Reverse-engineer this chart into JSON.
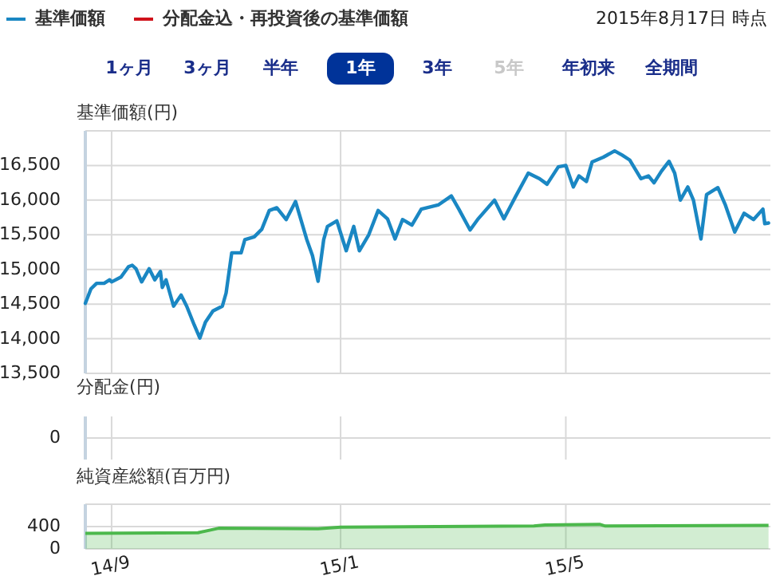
{
  "chart_data": [
    {
      "type": "line",
      "ylabel": "基準価額(円)",
      "legend": "top",
      "grid": true,
      "tick_labels": "y",
      "annotations": [
        "2015年8月17日 時点",
        "1ヶ月",
        "3ヶ月",
        "半年",
        "1年",
        "3年",
        "5年",
        "年初来",
        "全期間"
      ],
      "xlim": [
        "2014-08-18",
        "2015-08-18"
      ],
      "xticks": [
        {
          "value": "2014-09-01",
          "label": null
        },
        {
          "value": "2015-01-01",
          "label": null
        },
        {
          "value": "2015-05-01",
          "label": null
        }
      ],
      "ylim": [
        13500,
        17000
      ],
      "yticks": [
        {
          "value": 13500,
          "label": "13,500"
        },
        {
          "value": 14000,
          "label": "14,000"
        },
        {
          "value": 14500,
          "label": "14,500"
        },
        {
          "value": 15000,
          "label": "15,000"
        },
        {
          "value": 15500,
          "label": "15,500"
        },
        {
          "value": 16000,
          "label": "16,000"
        },
        {
          "value": 16500,
          "label": "16,500"
        },
        {
          "value": 17000,
          "label": null
        }
      ],
      "x": [
        "2014-08-18",
        "2014-08-21",
        "2014-08-24",
        "2014-08-28",
        "2014-08-31",
        "2014-09-01",
        "2014-09-06",
        "2014-09-10",
        "2014-09-12",
        "2014-09-14",
        "2014-09-17",
        "2014-09-21",
        "2014-09-24",
        "2014-09-27",
        "2014-09-28",
        "2014-09-30",
        "2014-10-04",
        "2014-10-08",
        "2014-10-11",
        "2014-10-15",
        "2014-10-18",
        "2014-10-21",
        "2014-10-25",
        "2014-10-30",
        "2014-11-01",
        "2014-11-04",
        "2014-11-09",
        "2014-11-11",
        "2014-11-16",
        "2014-11-20",
        "2014-11-24",
        "2014-11-28",
        "2014-12-03",
        "2014-12-08",
        "2014-12-14",
        "2014-12-17",
        "2014-12-20",
        "2014-12-23",
        "2014-12-25",
        "2014-12-30",
        "2015-01-04",
        "2015-01-08",
        "2015-01-11",
        "2015-01-16",
        "2015-01-21",
        "2015-01-26",
        "2015-01-30",
        "2015-02-03",
        "2015-02-08",
        "2015-02-13",
        "2015-02-22",
        "2015-03-01",
        "2015-03-05",
        "2015-03-11",
        "2015-03-15",
        "2015-03-24",
        "2015-03-29",
        "2015-04-04",
        "2015-04-11",
        "2015-04-17",
        "2015-04-21",
        "2015-04-27",
        "2015-05-01",
        "2015-05-05",
        "2015-05-08",
        "2015-05-12",
        "2015-05-15",
        "2015-05-21",
        "2015-05-27",
        "2015-05-31",
        "2015-06-04",
        "2015-06-10",
        "2015-06-14",
        "2015-06-17",
        "2015-06-21",
        "2015-06-25",
        "2015-06-28",
        "2015-07-01",
        "2015-07-05",
        "2015-07-08",
        "2015-07-12",
        "2015-07-15",
        "2015-07-21",
        "2015-07-25",
        "2015-07-30",
        "2015-08-04",
        "2015-08-09",
        "2015-08-14",
        "2015-08-15",
        "2015-08-17"
      ],
      "series": [
        {
          "name": "基準価額",
          "color": "#1a87c3",
          "values": [
            14510,
            14720,
            14800,
            14800,
            14850,
            14820,
            14890,
            15040,
            15060,
            15010,
            14820,
            15010,
            14850,
            14970,
            14740,
            14850,
            14470,
            14630,
            14470,
            14200,
            14010,
            14240,
            14400,
            14470,
            14660,
            15240,
            15240,
            15430,
            15470,
            15580,
            15850,
            15890,
            15720,
            15980,
            15430,
            15200,
            14830,
            15430,
            15620,
            15700,
            15270,
            15620,
            15270,
            15500,
            15850,
            15730,
            15440,
            15720,
            15640,
            15870,
            15930,
            16060,
            15870,
            15570,
            15720,
            16000,
            15730,
            16040,
            16390,
            16310,
            16230,
            16480,
            16500,
            16190,
            16350,
            16270,
            16550,
            16620,
            16710,
            16650,
            16580,
            16310,
            16350,
            16250,
            16420,
            16560,
            16390,
            16000,
            16190,
            16000,
            15440,
            16080,
            16180,
            15930,
            15540,
            15810,
            15720,
            15870,
            15660,
            15670
          ]
        },
        {
          "name": "分配金込・再投資後の基準価額",
          "color": "#d0121b",
          "values": [
            null,
            null,
            null,
            null,
            null,
            null,
            null,
            null,
            null,
            null,
            null,
            null,
            null,
            null,
            null,
            null,
            null,
            null,
            null,
            null,
            null,
            null,
            null,
            null,
            null,
            null,
            null,
            null,
            null,
            null,
            null,
            null,
            null,
            null,
            null,
            null,
            null,
            null,
            null,
            null,
            null,
            null,
            null,
            null,
            null,
            null,
            null,
            null,
            null,
            null,
            null,
            null,
            null,
            null,
            null,
            null,
            null,
            null,
            null,
            null,
            null,
            null,
            null,
            null,
            null,
            null,
            null,
            null,
            null,
            null,
            null,
            null,
            null,
            null,
            null,
            null,
            null,
            null,
            null,
            null,
            null,
            null,
            null,
            null,
            null,
            null,
            null,
            null,
            null,
            null
          ]
        }
      ]
    },
    {
      "type": "other",
      "annotations": [
        "分配金(円)",
        "0"
      ]
    },
    {
      "type": "area",
      "ylabel": "純資産総額(百万円)",
      "grid": true,
      "xlim": [
        "2014-08-18",
        "2015-08-18"
      ],
      "xticks": [
        {
          "value": "2014-09-01",
          "label": "14/9"
        },
        {
          "value": "2015-01-01",
          "label": "15/1"
        },
        {
          "value": "2015-05-01",
          "label": "15/5"
        }
      ],
      "ylim": [
        0,
        800
      ],
      "yticks": [
        0,
        400,
        {
          "value": 800,
          "label": null
        }
      ],
      "x": [
        "2014-08-18",
        "2014-10-17",
        "2014-10-28",
        "2014-12-20",
        "2015-01-01",
        "2015-04-14",
        "2015-04-20",
        "2015-05-19",
        "2015-05-22",
        "2015-08-17"
      ],
      "series": [
        {
          "color": "#4cb84c",
          "values": [
            280,
            290,
            370,
            360,
            390,
            410,
            430,
            440,
            410,
            420
          ]
        }
      ]
    }
  ]
}
